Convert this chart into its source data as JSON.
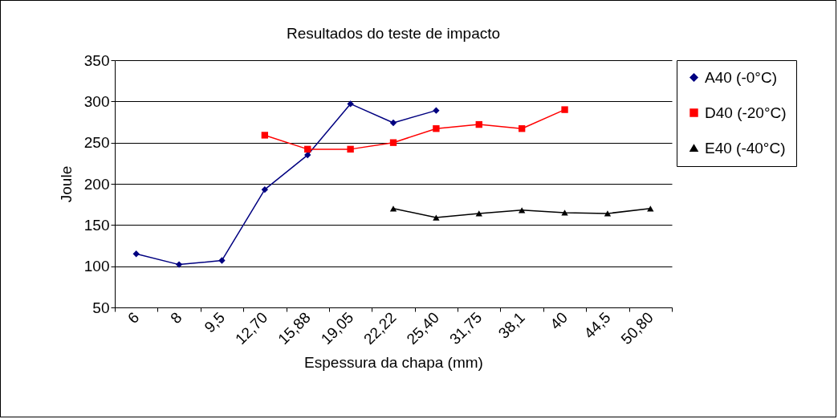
{
  "chart_data": {
    "type": "line",
    "title": "Resultados do teste de impacto",
    "xlabel": "Espessura da chapa (mm)",
    "ylabel": "Joule",
    "categories": [
      "6",
      "8",
      "9,5",
      "12,70",
      "15,88",
      "19,05",
      "22,22",
      "25,40",
      "31,75",
      "38,1",
      "40",
      "44,5",
      "50,80"
    ],
    "series": [
      {
        "name": "A40 (-0°C)",
        "color": "#000080",
        "marker": "diamond",
        "values": [
          115,
          102,
          107,
          193,
          235,
          297,
          274,
          289,
          null,
          null,
          null,
          null,
          null
        ]
      },
      {
        "name": "D40 (-20°C)",
        "color": "#ff0000",
        "marker": "square",
        "values": [
          null,
          null,
          null,
          259,
          242,
          242,
          250,
          267,
          272,
          267,
          290,
          null,
          null
        ]
      },
      {
        "name": "E40 (-40°C)",
        "color": "#000000",
        "marker": "triangle",
        "values": [
          null,
          null,
          null,
          null,
          null,
          null,
          170,
          159,
          164,
          168,
          165,
          164,
          170
        ]
      }
    ],
    "ylim": [
      50,
      350
    ],
    "yticks": [
      50,
      100,
      150,
      200,
      250,
      300,
      350
    ],
    "grid": "y",
    "legend": "right"
  }
}
